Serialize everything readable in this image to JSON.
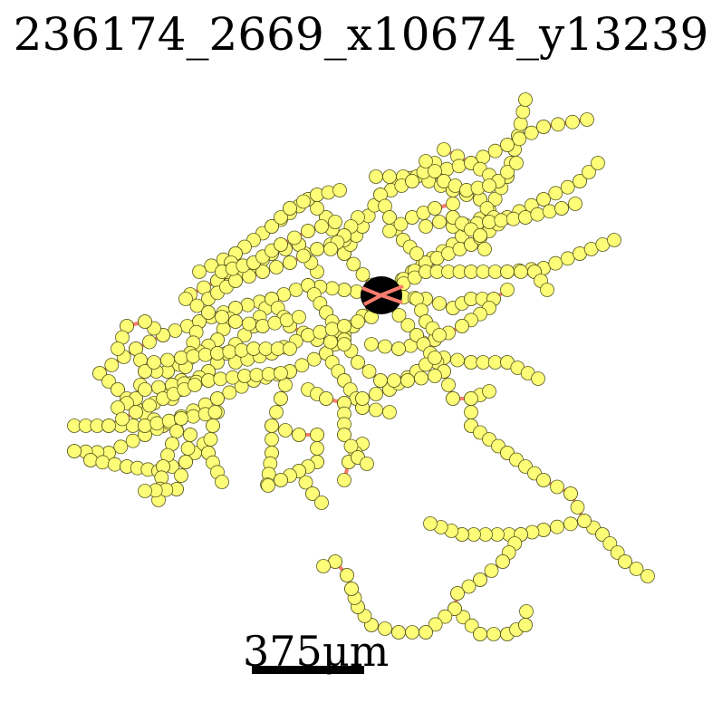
{
  "title": "236174_2669_x10674_y13239",
  "scale_bar": {
    "label": "375μm"
  },
  "colors": {
    "branch": "#f87d6e",
    "node_fill": "#fdfd78",
    "node_stroke": "#5a5a20",
    "soma": "#000000",
    "background": "#ffffff"
  }
}
